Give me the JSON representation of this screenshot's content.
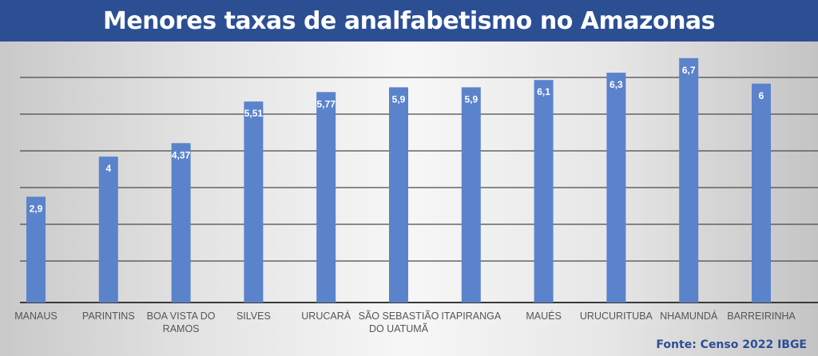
{
  "chart_data": {
    "type": "bar",
    "title": "Menores taxas de analfabetismo no Amazonas",
    "categories": [
      "MANAUS",
      "PARINTINS",
      "BOA VISTA DO RAMOS",
      "SILVES",
      "URUCARÁ",
      "SÃO SEBASTIÃO DO UATUMÃ",
      "ITAPIRANGA",
      "MAUÉS",
      "URUCURITUBA",
      "NHAMUNDÁ",
      "BARREIRINHA"
    ],
    "category_lines": [
      [
        "MANAUS"
      ],
      [
        "PARINTINS"
      ],
      [
        "BOA VISTA DO",
        "RAMOS"
      ],
      [
        "SILVES"
      ],
      [
        "URUCARÁ"
      ],
      [
        "SÃO SEBASTIÃO",
        "DO UATUMÃ"
      ],
      [
        "ITAPIRANGA"
      ],
      [
        "MAUÉS"
      ],
      [
        "URUCURITUBA"
      ],
      [
        "NHAMUNDÁ"
      ],
      [
        "BARREIRINHA"
      ]
    ],
    "values": [
      2.9,
      4,
      4.37,
      5.51,
      5.77,
      5.9,
      5.9,
      6.1,
      6.3,
      6.7,
      6
    ],
    "data_labels": [
      "2,9",
      "4",
      "4,37",
      "5,51",
      "5,77",
      "5,9",
      "5,9",
      "6,1",
      "6,3",
      "6,7",
      "6"
    ],
    "xlabel": "",
    "ylabel": "",
    "ylim": [
      0,
      7.1
    ],
    "grid": true,
    "bar_color": "#5b83cc",
    "source": "Fonte: Censo 2022 IBGE"
  }
}
